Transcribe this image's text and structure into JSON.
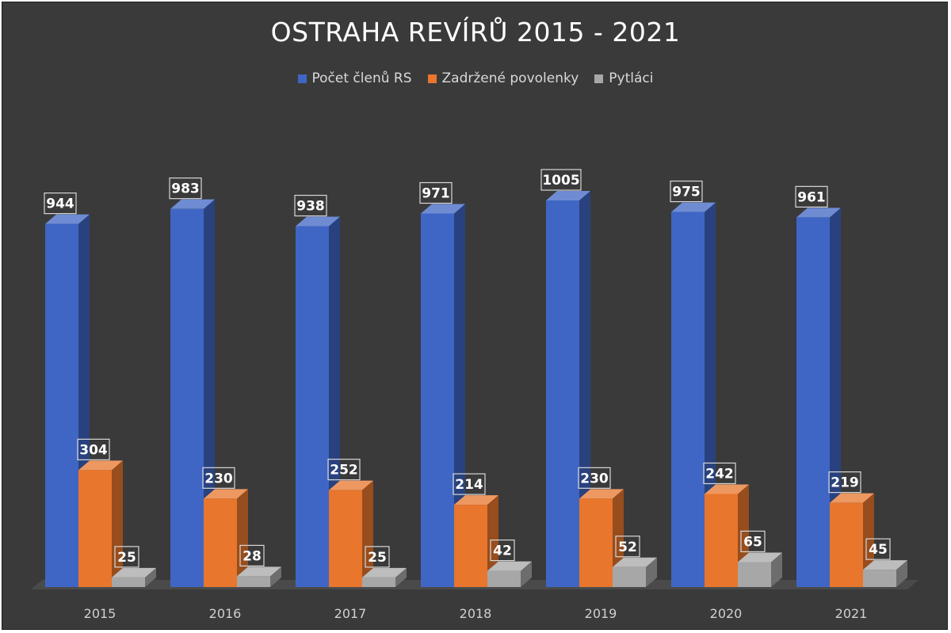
{
  "chart_data": {
    "type": "bar",
    "title": "OSTRAHA REVÍRŮ 2015 - 2021",
    "categories": [
      "2015",
      "2016",
      "2017",
      "2018",
      "2019",
      "2020",
      "2021"
    ],
    "series": [
      {
        "name": "Počet členů RS",
        "values": [
          944,
          983,
          938,
          971,
          1005,
          975,
          961
        ],
        "color": "#3f66c4"
      },
      {
        "name": "Zadržené povolenky",
        "values": [
          304,
          230,
          252,
          214,
          230,
          242,
          219
        ],
        "color": "#e8762c"
      },
      {
        "name": "Pytláci",
        "values": [
          25,
          28,
          25,
          42,
          52,
          65,
          45
        ],
        "color": "#a7a7a7"
      }
    ],
    "ylim": [
      0,
      1005
    ],
    "grid": false,
    "legend_position": "top",
    "data_labels": true,
    "style": "3d-clustered-column",
    "background_color": "#3a3a3a"
  }
}
